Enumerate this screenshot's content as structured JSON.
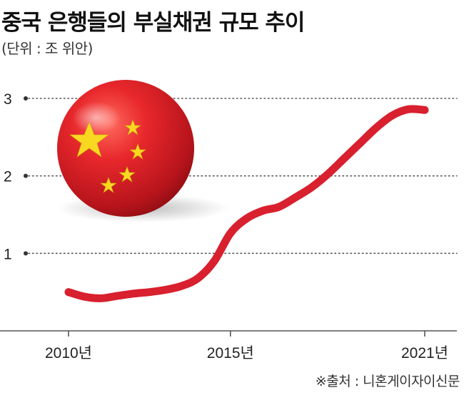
{
  "title": "중국 은행들의 부실채권 규모 추이",
  "unit_note": "(단위 : 조 위안)",
  "source": "※출처 : 니혼게이자이신문",
  "colors": {
    "line": "#d8202e",
    "grid": "#555555",
    "axis": "#555555",
    "ball_red": "#e2252c",
    "star_yellow": "#f8d820"
  },
  "decoration": "china-flag-ball-icon",
  "chart_data": {
    "type": "line",
    "title": "중국 은행들의 부실채권 규모 추이",
    "ylabel": "(단위 : 조 위안)",
    "xlabel": "",
    "ylim": [
      0,
      3.2
    ],
    "y_ticks": [
      {
        "value": 1,
        "label": "1"
      },
      {
        "value": 2,
        "label": "2"
      },
      {
        "value": 3,
        "label": "3"
      }
    ],
    "x_ticks": [
      {
        "value": 2010,
        "label": "2010년"
      },
      {
        "value": 2015,
        "label": "2015년"
      },
      {
        "value": 2021,
        "label": "2021년"
      }
    ],
    "xlim": [
      2010,
      2021
    ],
    "grid": "horizontal-dotted",
    "series": [
      {
        "x": [
          2010.0,
          2010.5,
          2011.0,
          2011.5,
          2012.0,
          2012.5,
          2013.0,
          2013.5,
          2014.0,
          2014.5,
          2015.0,
          2015.5,
          2016.0,
          2016.5,
          2017.0,
          2017.5,
          2018.0,
          2018.5,
          2019.0,
          2019.5,
          2020.0,
          2020.5,
          2021.0
        ],
        "values": [
          0.5,
          0.44,
          0.42,
          0.45,
          0.48,
          0.5,
          0.53,
          0.58,
          0.68,
          0.9,
          1.26,
          1.45,
          1.55,
          1.6,
          1.72,
          1.85,
          2.02,
          2.22,
          2.42,
          2.62,
          2.78,
          2.86,
          2.85
        ]
      }
    ]
  }
}
